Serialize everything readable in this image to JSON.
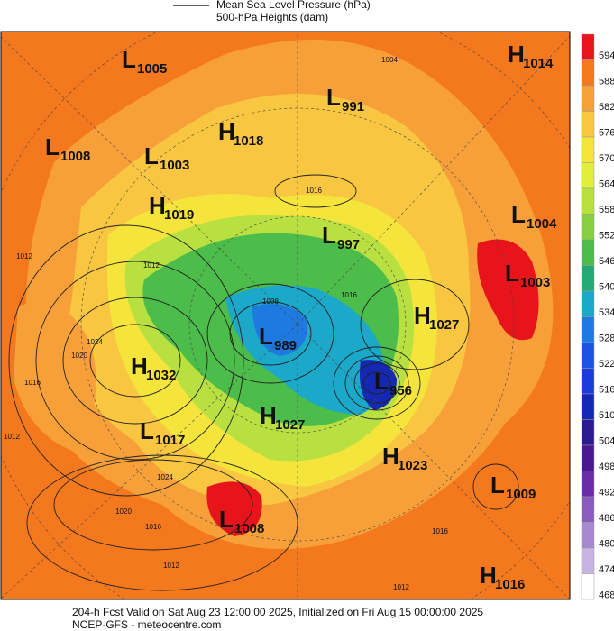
{
  "legend": {
    "items": [
      "Mean Sea Level Pressure (hPa)",
      "500-hPa Heights (dam)"
    ]
  },
  "centers": [
    {
      "type": "L",
      "value": 1005
    },
    {
      "type": "H",
      "value": 1014
    },
    {
      "type": "L",
      "value": 991
    },
    {
      "type": "H",
      "value": 1018
    },
    {
      "type": "L",
      "value": 1008
    },
    {
      "type": "L",
      "value": 1003
    },
    {
      "type": "H",
      "value": 1019
    },
    {
      "type": "L",
      "value": 1004
    },
    {
      "type": "L",
      "value": 997
    },
    {
      "type": "L",
      "value": 1003
    },
    {
      "type": "H",
      "value": 1027
    },
    {
      "type": "L",
      "value": 989
    },
    {
      "type": "H",
      "value": 1032
    },
    {
      "type": "L",
      "value": 956
    },
    {
      "type": "H",
      "value": 1027
    },
    {
      "type": "L",
      "value": 1017
    },
    {
      "type": "H",
      "value": 1023
    },
    {
      "type": "L",
      "value": 1009
    },
    {
      "type": "L",
      "value": 1008
    },
    {
      "type": "H",
      "value": 1016
    }
  ],
  "contour_labels": [
    1004,
    1016,
    1012,
    1024,
    1020,
    1016,
    1012,
    1008,
    1016,
    1012,
    1024,
    1020,
    1016,
    1012,
    1016,
    1012
  ],
  "colorbar": [
    {
      "value": 594,
      "color": "#e8141c"
    },
    {
      "value": 588,
      "color": "#f3781e"
    },
    {
      "value": 582,
      "color": "#f7a03a"
    },
    {
      "value": 576,
      "color": "#f8c640"
    },
    {
      "value": 570,
      "color": "#f4e43c"
    },
    {
      "value": 564,
      "color": "#e2ee3c"
    },
    {
      "value": 558,
      "color": "#b8e040"
    },
    {
      "value": 552,
      "color": "#86d044"
    },
    {
      "value": 546,
      "color": "#4cbc4a"
    },
    {
      "value": 540,
      "color": "#26a874"
    },
    {
      "value": 534,
      "color": "#1ca8c8"
    },
    {
      "value": 528,
      "color": "#1e7ae0"
    },
    {
      "value": 522,
      "color": "#1c54e0"
    },
    {
      "value": 516,
      "color": "#1a3cd8"
    },
    {
      "value": 510,
      "color": "#1428b4"
    },
    {
      "value": 504,
      "color": "#2a1c90"
    },
    {
      "value": 498,
      "color": "#4a1890"
    },
    {
      "value": 492,
      "color": "#6a2ca8"
    },
    {
      "value": 486,
      "color": "#8a5cc0"
    },
    {
      "value": 480,
      "color": "#a888d0"
    },
    {
      "value": 474,
      "color": "#c8b4e0"
    },
    {
      "value": 468,
      "color": "#ffffff"
    }
  ],
  "footer": {
    "lines": [
      "204-h Fcst Valid on Sat Aug 23 12:00:00 2025, Initialized on Fri Aug 15 00:00:00 2025",
      "NCEP-GFS  - meteocentre.com"
    ]
  }
}
